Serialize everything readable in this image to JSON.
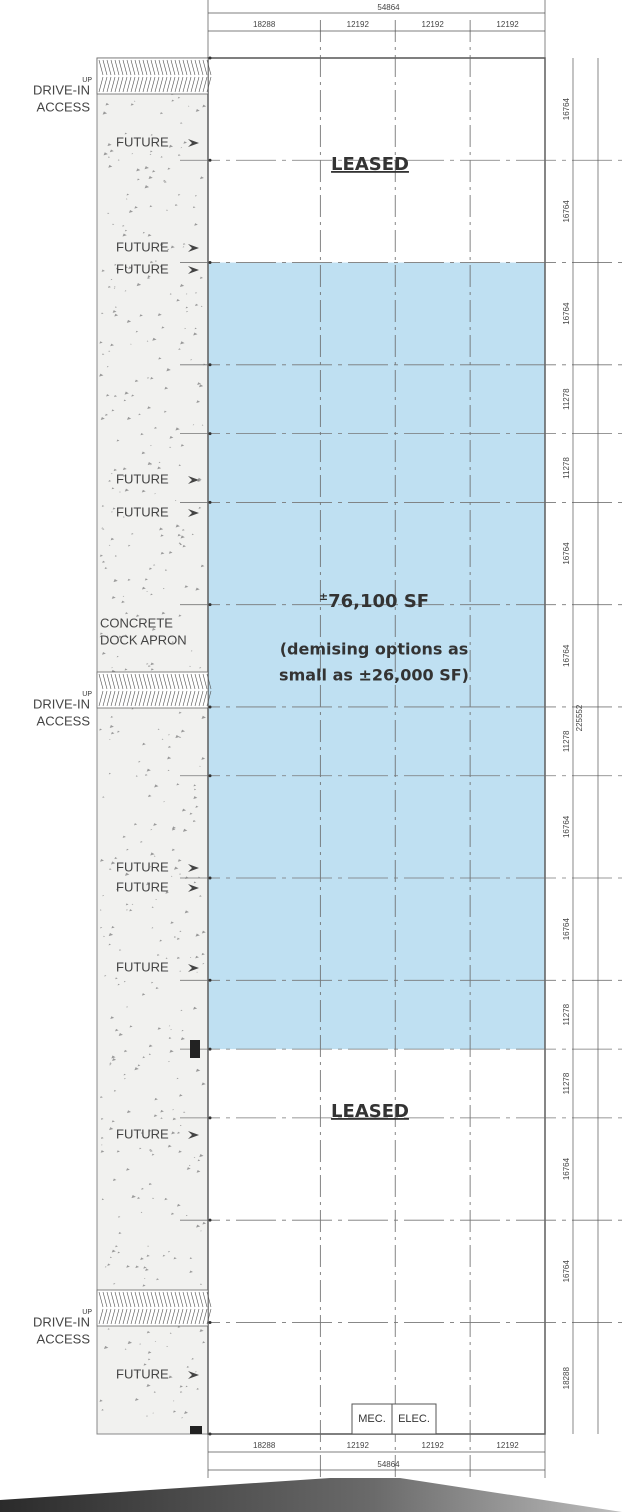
{
  "top_dimensions": {
    "total": 54864,
    "bays": [
      18288,
      12192,
      12192,
      12192
    ]
  },
  "bottom_dimensions": {
    "total": 54864,
    "bays": [
      18288,
      12192,
      12192,
      12192
    ]
  },
  "right_dimensions": {
    "segments": [
      16764,
      16764,
      16764,
      11278,
      11278,
      16764,
      16764,
      11278,
      16764,
      16764,
      11278,
      11278,
      16764,
      16764,
      18288
    ],
    "total": 225552
  },
  "drive_ins": [
    {
      "up": "UP",
      "lines": [
        "DRIVE-IN",
        "ACCESS"
      ]
    },
    {
      "up": "UP",
      "lines": [
        "DRIVE-IN",
        "ACCESS"
      ]
    },
    {
      "up": "UP",
      "lines": [
        "DRIVE-IN",
        "ACCESS"
      ]
    }
  ],
  "future_doors": [
    "FUTURE",
    "FUTURE",
    "FUTURE",
    "FUTURE",
    "FUTURE",
    "FUTURE",
    "FUTURE",
    "FUTURE",
    "FUTURE",
    "FUTURE"
  ],
  "apron_label": [
    "CONCRETE",
    "DOCK APRON"
  ],
  "leased_areas": [
    "LEASED",
    "LEASED"
  ],
  "available": {
    "plus_minus": "±",
    "area": "76,100 SF",
    "note": [
      "(demising options as",
      "small as ±26,000 SF)"
    ]
  },
  "rooms": [
    "MEC.",
    "ELEC."
  ]
}
